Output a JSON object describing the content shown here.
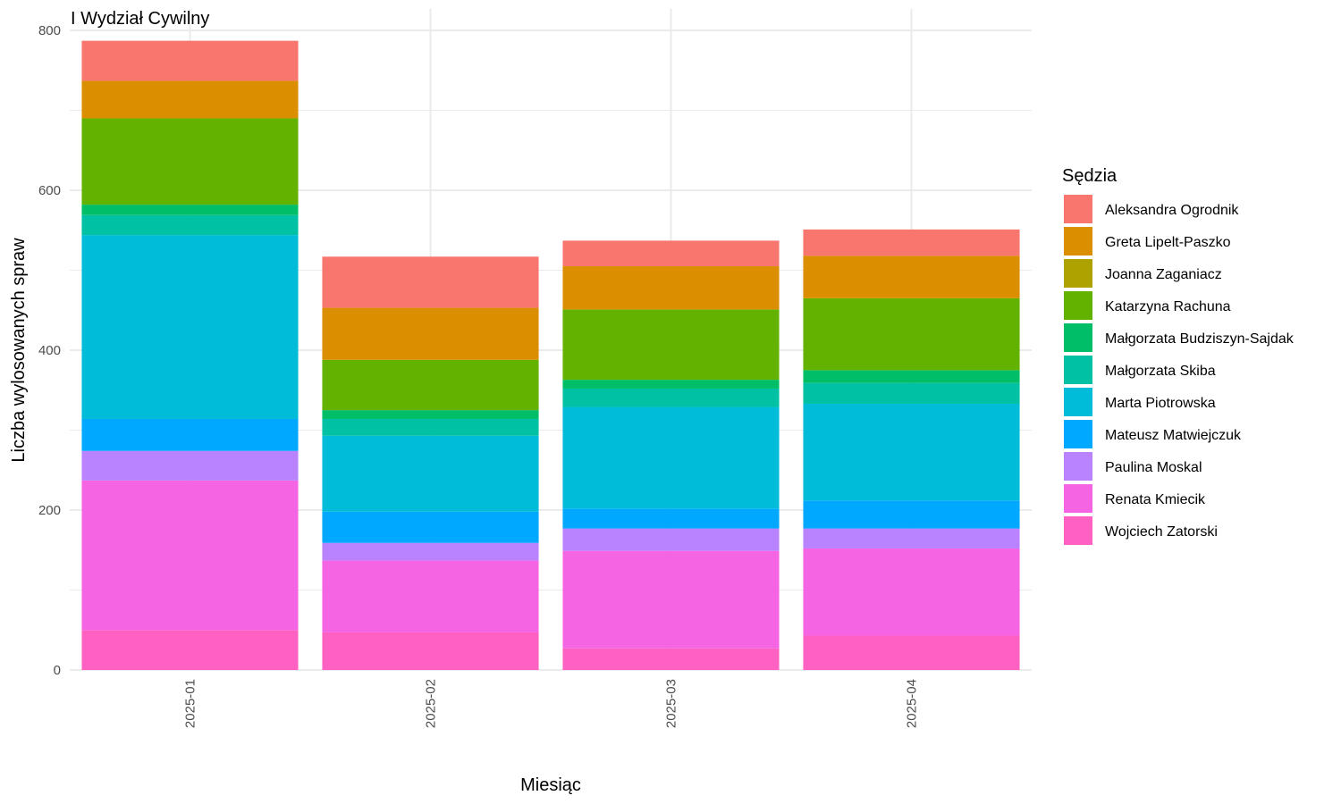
{
  "chart_data": {
    "type": "bar",
    "stacked": true,
    "title": "I Wydział Cywilny",
    "xlabel": "Miesiąc",
    "ylabel": "Liczba wylosowanych spraw",
    "ylim": [
      0,
      800
    ],
    "yticks": [
      0,
      200,
      400,
      600,
      800
    ],
    "grid": true,
    "legend_title": "Sędzia",
    "legend_position": "right",
    "categories": [
      "2025-01",
      "2025-02",
      "2025-03",
      "2025-04"
    ],
    "series": [
      {
        "name": "Wojciech Zatorski",
        "color": "#FF61C3",
        "values": [
          50,
          47,
          27,
          43
        ]
      },
      {
        "name": "Renata Kmiecik",
        "color": "#F564E3",
        "values": [
          187,
          90,
          122,
          109
        ]
      },
      {
        "name": "Paulina Moskal",
        "color": "#B983FF",
        "values": [
          37,
          22,
          28,
          25
        ]
      },
      {
        "name": "Mateusz Matwiejczuk",
        "color": "#00A9FF",
        "values": [
          40,
          39,
          25,
          35
        ]
      },
      {
        "name": "Marta Piotrowska",
        "color": "#00BCD8",
        "values": [
          230,
          95,
          127,
          121
        ]
      },
      {
        "name": "Małgorzata Skiba",
        "color": "#00C1A3",
        "values": [
          25,
          21,
          23,
          26
        ]
      },
      {
        "name": "Małgorzata Budziszyn-Sajdak",
        "color": "#00BE67",
        "values": [
          13,
          11,
          11,
          16
        ]
      },
      {
        "name": "Katarzyna Rachuna",
        "color": "#64B200",
        "values": [
          108,
          63,
          88,
          90
        ]
      },
      {
        "name": "Joanna Zaganiacz",
        "color": "#AEA200",
        "values": [
          0,
          0,
          0,
          0
        ]
      },
      {
        "name": "Greta Lipelt-Paszko",
        "color": "#DB8E00",
        "values": [
          47,
          65,
          54,
          53
        ]
      },
      {
        "name": "Aleksandra Ogrodnik",
        "color": "#F8766D",
        "values": [
          50,
          64,
          32,
          33
        ]
      }
    ],
    "legend_order": [
      "Aleksandra Ogrodnik",
      "Greta Lipelt-Paszko",
      "Joanna Zaganiacz",
      "Katarzyna Rachuna",
      "Małgorzata Budziszyn-Sajdak",
      "Małgorzata Skiba",
      "Marta Piotrowska",
      "Mateusz Matwiejczuk",
      "Paulina Moskal",
      "Renata Kmiecik",
      "Wojciech Zatorski"
    ]
  }
}
